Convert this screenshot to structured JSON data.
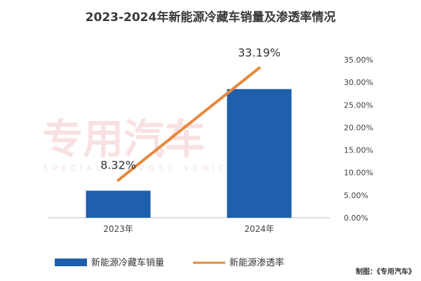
{
  "chart_data": {
    "type": "bar+line",
    "title": "2023-2024年新能源冷藏车销量及渗透率情况",
    "categories": [
      "2023年",
      "2024年"
    ],
    "series": [
      {
        "name": "新能源冷藏车销量",
        "type": "bar",
        "axis": "left",
        "values": [
          6000,
          28500
        ],
        "color": "#1f5fab"
      },
      {
        "name": "新能源渗透率",
        "type": "line",
        "axis": "right",
        "values": [
          8.32,
          33.19
        ],
        "labels": [
          "8.32%",
          "33.19%"
        ],
        "color": "#e8883a"
      }
    ],
    "y2_ticks": [
      "0.00%",
      "5.00%",
      "10.00%",
      "15.00%",
      "20.00%",
      "25.00%",
      "30.00%",
      "35.00%"
    ],
    "y2lim": [
      0,
      35
    ],
    "ylim": [
      0,
      35000
    ],
    "grid": false,
    "legend": "bottom-left"
  },
  "watermark": {
    "text": "专用汽车",
    "subtext": "SPECIAL PURPOSE VEHICLE"
  },
  "source": "制图：《专用汽车》"
}
